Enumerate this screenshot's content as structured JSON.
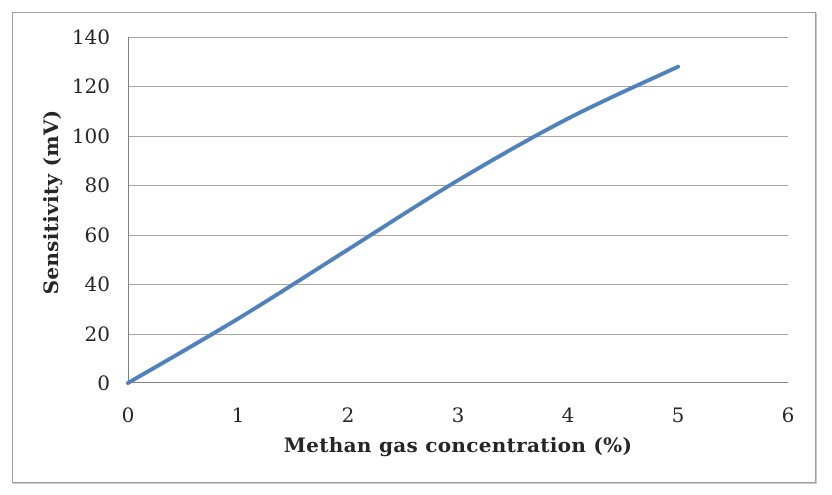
{
  "chart_data": {
    "type": "line",
    "title": "",
    "xlabel": "Methan gas concentration (%)",
    "ylabel": "Sensitivity (mV)",
    "x": [
      0,
      1,
      2,
      3,
      4,
      5
    ],
    "series": [
      {
        "name": "Sensitivity (mV)",
        "values": [
          0,
          26,
          54,
          82,
          107,
          128
        ]
      }
    ],
    "xlim": [
      0,
      6
    ],
    "ylim": [
      0,
      140
    ],
    "x_ticks": [
      0,
      1,
      2,
      3,
      4,
      5,
      6
    ],
    "y_ticks": [
      0,
      20,
      40,
      60,
      80,
      100,
      120,
      140
    ],
    "grid": "horizontal-only",
    "legend": "none",
    "smooth": true,
    "colors": {
      "line": "#4F81BD",
      "gridline": "#A6A6A6",
      "axis": "#808080",
      "text": "#262626",
      "border": "#9E9E9E",
      "background": "#FFFFFF"
    }
  }
}
